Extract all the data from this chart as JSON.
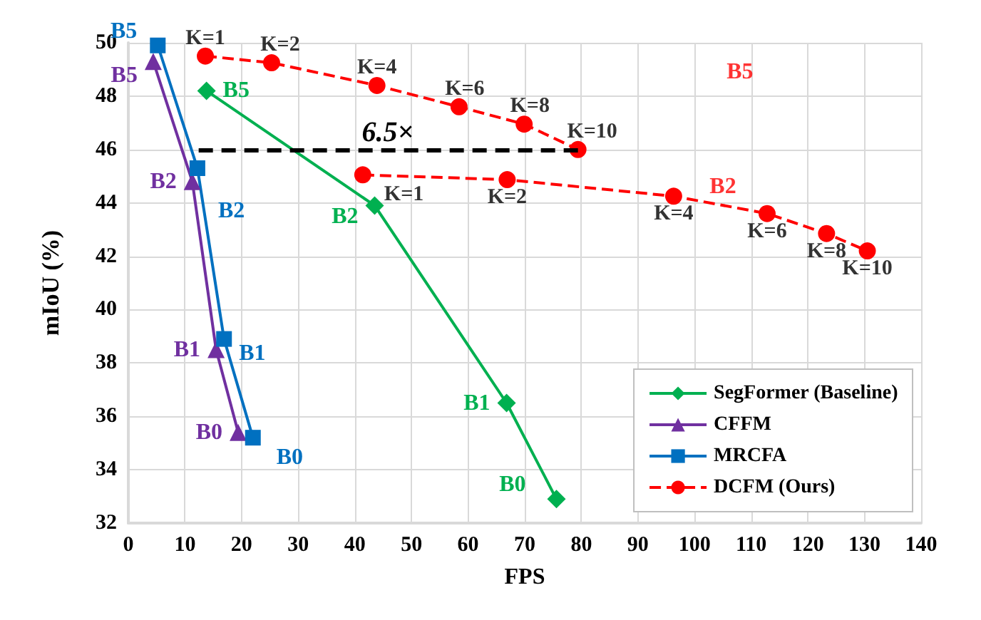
{
  "chart_data": {
    "type": "line",
    "xlabel": "FPS",
    "ylabel": "mIoU (%)",
    "xlim": [
      0,
      140
    ],
    "xticks": [
      0,
      10,
      20,
      30,
      40,
      50,
      60,
      70,
      80,
      90,
      100,
      110,
      120,
      130,
      140
    ],
    "ylim": [
      32,
      50
    ],
    "yticks": [
      32,
      34,
      36,
      38,
      40,
      42,
      44,
      46,
      48,
      50
    ],
    "grid": true,
    "legend": "bottom right",
    "series": [
      {
        "name": "SegFormer (Baseline)",
        "color": "#00b050",
        "marker": "diamond",
        "line_style": "solid",
        "x": [
          13.8,
          43.5,
          66.8,
          75.6
        ],
        "values": [
          48.2,
          43.9,
          36.5,
          32.9
        ],
        "value_labels": [
          "B5",
          "B2",
          "B1",
          "B0"
        ]
      },
      {
        "name": "CFFM",
        "color": "#7030a0",
        "marker": "triangle",
        "line_style": "solid",
        "x": [
          4.4,
          11.3,
          15.5,
          19.4
        ],
        "values": [
          49.3,
          44.8,
          38.5,
          35.4
        ],
        "value_labels": [
          "B5",
          "B2",
          "B1",
          "B0"
        ]
      },
      {
        "name": "MRCFA",
        "color": "#0070c0",
        "marker": "square",
        "line_style": "solid",
        "x": [
          5.2,
          12.2,
          16.9,
          22.0
        ],
        "values": [
          49.9,
          45.3,
          38.9,
          35.2
        ],
        "value_labels": [
          "B5",
          "B2",
          "B1",
          "B0"
        ]
      },
      {
        "name": "DCFM (Ours)",
        "color": "#ff0000",
        "marker": "circle",
        "line_style": "dashed",
        "x": [
          13.6,
          25.3,
          43.9,
          58.4,
          69.9,
          79.4
        ],
        "values": [
          49.5,
          49.25,
          48.4,
          47.6,
          46.95,
          46.0
        ]
      },
      {
        "color": "#ff0000",
        "marker": "circle",
        "line_style": "dashed",
        "x": [
          41.4,
          66.9,
          96.3,
          112.8,
          123.3,
          130.5
        ],
        "values": [
          45.05,
          44.87,
          44.25,
          43.6,
          42.85,
          42.2
        ]
      }
    ],
    "annotations": [
      "6.5×",
      "B5",
      "B2",
      {
        "text": "K=1",
        "x": 13.6,
        "y": 49.5
      },
      {
        "text": "K=2",
        "x": 25.3,
        "y": 49.25
      },
      {
        "text": "K=4",
        "x": 43.9,
        "y": 48.4
      },
      {
        "text": "K=6",
        "x": 58.4,
        "y": 47.6
      },
      {
        "text": "K=8",
        "x": 69.9,
        "y": 46.95
      },
      {
        "text": "K=10",
        "x": 79.4,
        "y": 46.0
      },
      {
        "text": "K=1",
        "x": 41.4,
        "y": 45.05
      },
      {
        "text": "K=2",
        "x": 66.9,
        "y": 44.87
      },
      {
        "text": "K=4",
        "x": 96.3,
        "y": 44.25
      },
      {
        "text": "K=6",
        "x": 112.8,
        "y": 43.6
      },
      {
        "text": "K=8",
        "x": 123.3,
        "y": 42.85
      },
      {
        "text": "K=10",
        "x": 130.5,
        "y": 42.2
      }
    ]
  }
}
